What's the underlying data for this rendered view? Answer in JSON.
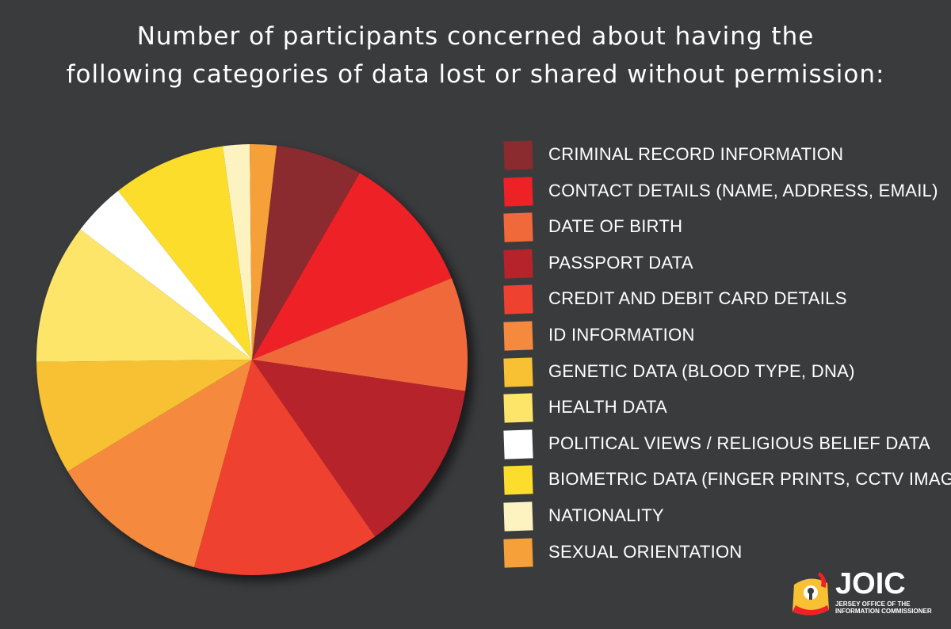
{
  "title": {
    "line1": "Number of participants concerned about having the",
    "line2": "following categories of data lost or shared without permission:"
  },
  "chart_data": {
    "type": "pie",
    "title": "Number of participants concerned about having the following categories of data lost or shared without permission:",
    "legend_position": "right",
    "slices": [
      {
        "label": "CRIMINAL RECORD INFORMATION",
        "value": 6.5,
        "color": "#8b2a2f"
      },
      {
        "label": "CONTACT DETAILS (NAME, ADDRESS, EMAIL)",
        "value": 10.5,
        "color": "#ee2127"
      },
      {
        "label": "DATE OF BIRTH",
        "value": 8.5,
        "color": "#f0693a"
      },
      {
        "label": "PASSPORT DATA",
        "value": 13.0,
        "color": "#b6232b"
      },
      {
        "label": "CREDIT AND DEBIT CARD DETAILS",
        "value": 14.0,
        "color": "#ef4130"
      },
      {
        "label": "ID INFORMATION",
        "value": 12.0,
        "color": "#f58a3e"
      },
      {
        "label": "GENETIC DATA (BLOOD TYPE, DNA)",
        "value": 8.5,
        "color": "#f7c133"
      },
      {
        "label": "HEALTH DATA",
        "value": 10.5,
        "color": "#fde56a"
      },
      {
        "label": "POLITICAL VIEWS  / RELIGIOUS BELIEF DATA",
        "value": 4.0,
        "color": "#ffffff"
      },
      {
        "label": "BIOMETRIC DATA (FINGER PRINTS, CCTV IMAGE)",
        "value": 8.5,
        "color": "#fcdd2b"
      },
      {
        "label": "NATIONALITY",
        "value": 2.0,
        "color": "#fdf3c1"
      },
      {
        "label": "SEXUAL ORIENTATION",
        "value": 2.0,
        "color": "#f6a03a"
      }
    ]
  },
  "logo": {
    "name": "JOIC",
    "subtitle_line1": "JERSEY OFFICE OF THE",
    "subtitle_line2": "INFORMATION COMMISSIONER"
  }
}
